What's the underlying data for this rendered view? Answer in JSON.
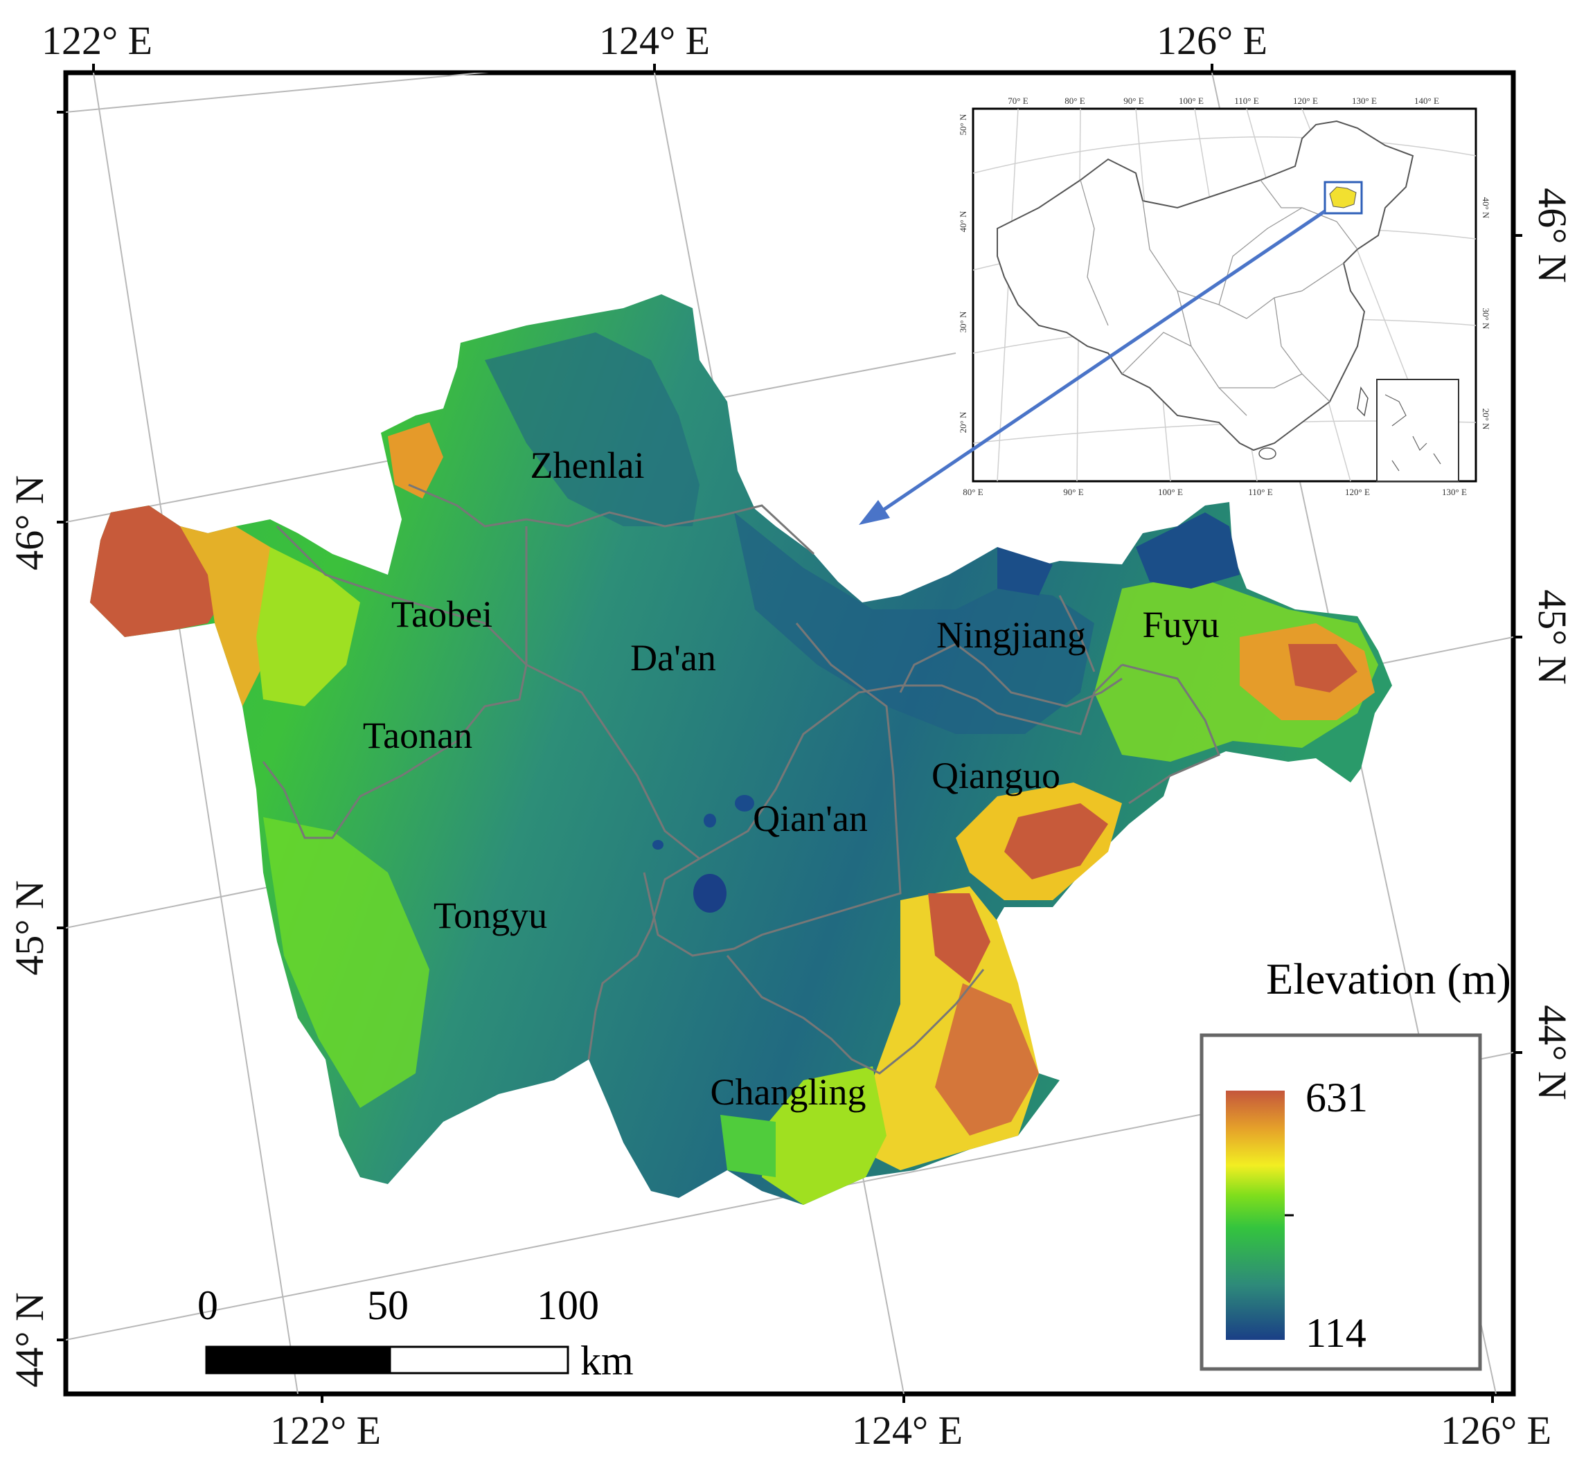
{
  "top_lon_labels": [
    "122° E",
    "124° E",
    "126° E"
  ],
  "bottom_lon_labels": [
    "122° E",
    "124° E",
    "126° E"
  ],
  "left_lat_labels": [
    "46° N",
    "45° N",
    "44° N"
  ],
  "right_lat_labels": [
    "46° N",
    "45° N",
    "44° N"
  ],
  "counties": [
    {
      "name": "Zhenlai"
    },
    {
      "name": "Taobei"
    },
    {
      "name": "Da'an"
    },
    {
      "name": "Ningjiang"
    },
    {
      "name": "Fuyu"
    },
    {
      "name": "Taonan"
    },
    {
      "name": "Qianguo"
    },
    {
      "name": "Qian'an"
    },
    {
      "name": "Tongyu"
    },
    {
      "name": "Changling"
    }
  ],
  "legend": {
    "title": "Elevation (m)",
    "max": "631",
    "min": "114",
    "colors": [
      "#1a4b8c",
      "#2e8a7a",
      "#35c24a",
      "#7ddc1e",
      "#f4f020",
      "#e59a2a",
      "#c75a3a"
    ]
  },
  "scale_bar": {
    "labels": [
      "0",
      "50",
      "100"
    ],
    "unit": "km"
  },
  "inset": {
    "top_labels": [
      "70° E",
      "80° E",
      "90° E",
      "100° E",
      "110° E",
      "120° E",
      "130° E",
      "140° E"
    ],
    "bottom_labels": [
      "80° E",
      "90° E",
      "100° E",
      "110° E",
      "120° E",
      "130° E"
    ],
    "left_labels": [
      "50° N",
      "40° N",
      "30° N",
      "20° N"
    ],
    "right_labels": [
      "40° N",
      "30° N",
      "20° N"
    ],
    "highlight_color": "#2e5fb8"
  }
}
